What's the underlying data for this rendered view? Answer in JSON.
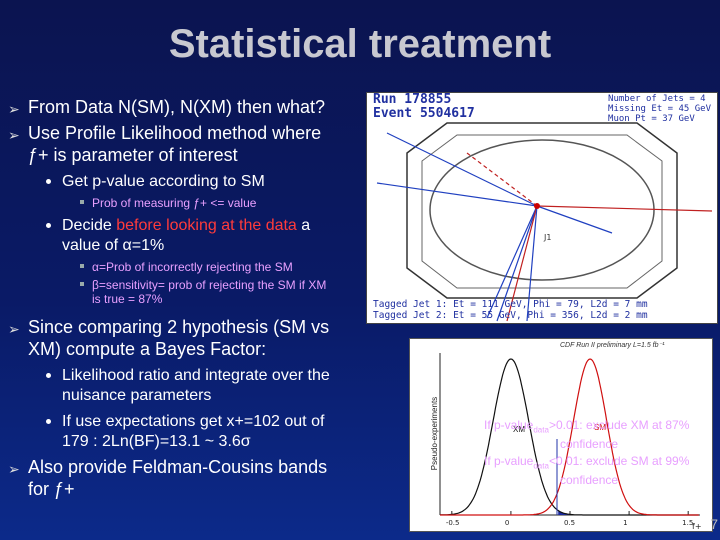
{
  "slide": {
    "title": "Statistical treatment",
    "page_number": "7"
  },
  "bullets": {
    "b1": "From Data N(SM), N(XM) then what?",
    "b2_line1": "Use Profile Likelihood method where",
    "b2_line2": "ƒ+ is parameter of interest",
    "b2_sub1": "Get p-value according to SM",
    "b2_sub1_note": "Prob of measuring ƒ+ <= value",
    "b2_sub2_pre": "Decide ",
    "b2_sub2_red": "before looking at the data",
    "b2_sub2_post": " a",
    "b2_sub2_line2": "value of α=1%",
    "b2_sub2_note1": "α=Prob of incorrectly rejecting the SM",
    "b2_sub2_note2_line1": "β=sensitivity= prob of rejecting the SM if XM",
    "b2_sub2_note2_line2": "is true = 87%",
    "b3_line1": "Since comparing 2 hypothesis (SM vs",
    "b3_line2": "XM) compute a Bayes Factor:",
    "b3_sub1_line1": "Likelihood ratio and integrate over the",
    "b3_sub1_line2": "nuisance parameters",
    "b3_sub2_line1": "If use expectations get x+=102 out of",
    "b3_sub2_line2": "179 : 2Ln(BF)=13.1 ~ 3.6σ",
    "b4_line1": "Also provide Feldman-Cousins bands",
    "b4_line2": "for ƒ+"
  },
  "event_display": {
    "run": "Run 178855",
    "event": "Event 5504617",
    "info1": "Number of Jets = 4",
    "info2": "Missing Et = 45 GeV",
    "info3": "Muon Pt = 37 GeV",
    "tag1": "Tagged Jet 1: Et = 111 GeV, Phi = 79, L2d = 7 mm",
    "tag2": "Tagged Jet 2: Et = 55 GeV, Phi = 356, L2d = 2 mm",
    "j1_label": "J1"
  },
  "plot": {
    "title": "CDF Run II preliminary L=1.5 fb⁻¹",
    "ylabel": "Pseudo-experiments",
    "xlabel": "f+",
    "xm_label": "XM",
    "sm_label": "SM",
    "xticks": [
      "-0.5",
      "0",
      "0.5",
      "1",
      "1.5"
    ],
    "note1_line1": "If p-value",
    "note1_sub": "data",
    "note1_line1b": ">0.01: exclude XM at 87%",
    "note1_line2": "confidence",
    "note2_line1": "If p-value",
    "note2_sub": "data",
    "note2_line1b": "<0.01: exclude SM at 99%",
    "note2_line2": "confidence"
  },
  "colors": {
    "accent_red": "#ff3b3b",
    "note_violet": "#e8a0ff",
    "title_gray": "#c8c8d0",
    "sm_curve": "#d01010",
    "xm_curve": "#111111",
    "background": "#0a1a66"
  },
  "chart_data": {
    "type": "line",
    "title": "CDF Run II preliminary L=1.5 fb⁻¹",
    "xlabel": "f+",
    "ylabel": "Pseudo-experiments",
    "xlim": [
      -0.6,
      1.6
    ],
    "series": [
      {
        "name": "XM",
        "mean": 0.0,
        "sigma": 0.15
      },
      {
        "name": "SM",
        "mean": 0.67,
        "sigma": 0.14
      }
    ]
  }
}
